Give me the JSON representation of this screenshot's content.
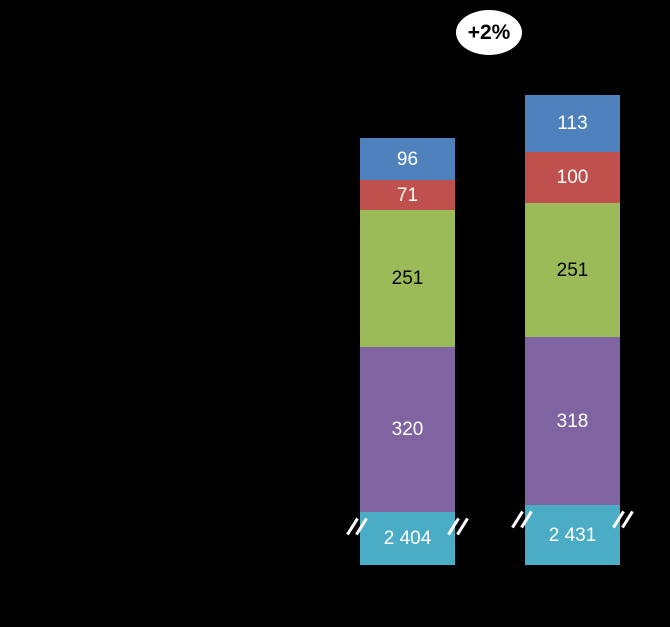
{
  "chart_data": {
    "type": "bar",
    "stacked": true,
    "background": "#000000",
    "orientation": "vertical",
    "bar_count": 2,
    "axis_break_on_bottom_segment": true,
    "annotation": {
      "text": "+2%",
      "shape": "ellipse",
      "fill": "#ffffff",
      "text_color": "#000000",
      "position": "top, between bar tops"
    },
    "series": [
      {
        "name": "blue-top-segment",
        "color": "#4F81BD",
        "values": [
          96,
          113
        ],
        "labels": [
          "96",
          "113"
        ]
      },
      {
        "name": "red-segment",
        "color": "#C0504D",
        "values": [
          71,
          100
        ],
        "labels": [
          "71",
          "100"
        ]
      },
      {
        "name": "green-segment",
        "color": "#9BBB59",
        "values": [
          251,
          251
        ],
        "labels": [
          "251",
          "251"
        ]
      },
      {
        "name": "purple-segment",
        "color": "#8064A2",
        "values": [
          320,
          318
        ],
        "labels": [
          "320",
          "318"
        ]
      },
      {
        "name": "teal-base-segment",
        "color": "#4BACC6",
        "values": [
          2404,
          2431
        ],
        "labels": [
          "2 404",
          "2 431"
        ],
        "axis_break": true
      }
    ],
    "totals_visible": false,
    "title": "",
    "xlabel": "",
    "ylabel": "",
    "legend": []
  }
}
